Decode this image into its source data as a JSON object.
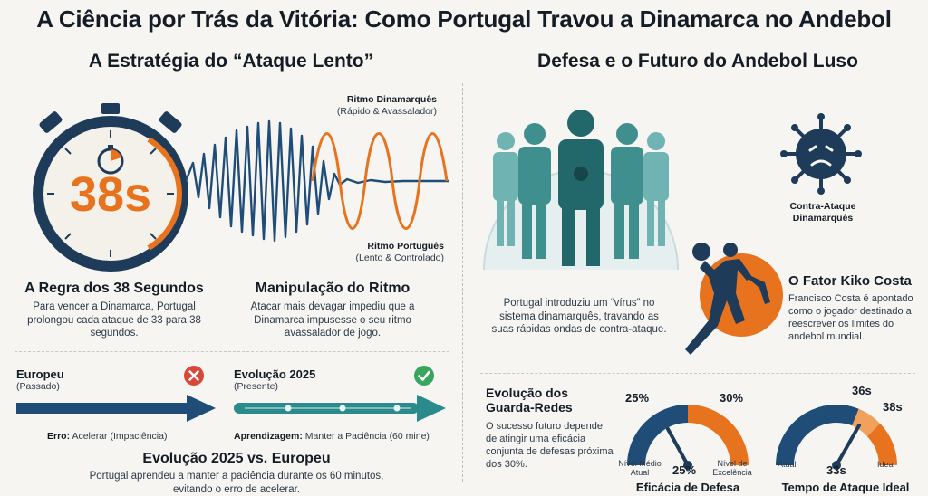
{
  "title": "A Ciência por Trás da Vitória: Como Portugal Travou a Dinamarca no Andebol",
  "left": {
    "heading": "A Estratégia do “Ataque Lento”",
    "stopwatch_value": "38s",
    "rule": {
      "title": "A Regra dos 38 Segundos",
      "text": "Para vencer a Dinamarca, Portugal prolongou cada ataque de 33 para 38 segundos."
    },
    "wave": {
      "danish_title": "Ritmo Dinamarquês",
      "danish_sub": "(Rápido & Avassalador)",
      "portuguese_title": "Ritmo Português",
      "portuguese_sub": "(Lento & Controlado)"
    },
    "rhythm": {
      "title": "Manipulação do Ritmo",
      "text": "Atacar mais devagar impediu que a Dinamarca impusesse o seu ritmo avassalador de jogo."
    },
    "europeu": {
      "title": "Europeu",
      "sub": "(Passado)",
      "error_label": "Erro:",
      "error_text": "Acelerar (Impaciência)"
    },
    "evolucao": {
      "title": "Evolução 2025",
      "sub": "(Presente)",
      "learn_label": "Aprendizagem:",
      "learn_text": "Manter a Paciência (60 mine)"
    },
    "compare": {
      "title": "Evolução 2025 vs. Europeu",
      "text": "Portugal aprendeu a manter a paciência durante os 60 minutos, evitando o erro de acelerar."
    }
  },
  "right": {
    "heading": "Defesa e o Futuro do Andebol Luso",
    "virus_label_1": "Contra-Ataque",
    "virus_label_2": "Dinamarquês",
    "defense_text": "Portugal introduziu um “vírus” no sistema dinamarquês, travando as suas rápidas ondas de contra-ataque.",
    "kiko": {
      "title": "O Fator Kiko Costa",
      "text": "Francisco Costa é apontado como o jogador destinado a reescrever os limites do andebol mundial."
    },
    "gk": {
      "title_1": "Evolução dos",
      "title_2": "Guarda-Redes",
      "text": "O sucesso futuro depende de atingir uma eficácia conjunta de defesas próxima dos 30%."
    },
    "gauge1": {
      "left_value": "25%",
      "right_value": "30%",
      "needle_value": "25%",
      "left_label_1": "Nível Médio",
      "left_label_2": "Atual",
      "right_label_1": "Nível de",
      "right_label_2": "Excelência",
      "caption": "Eficácia de Defesa",
      "current": 25,
      "min": 20,
      "max": 35
    },
    "gauge2": {
      "top_value": "36s",
      "right_value": "38s",
      "needle_value": "33s",
      "left_label": "Atual",
      "right_label": "Ideal",
      "caption": "Tempo de Ataque Ideal"
    }
  },
  "colors": {
    "navy": "#1f4d78",
    "orange": "#e8731e",
    "teal": "#2b8a8c",
    "red": "#d9473a",
    "green": "#3aa55c"
  }
}
